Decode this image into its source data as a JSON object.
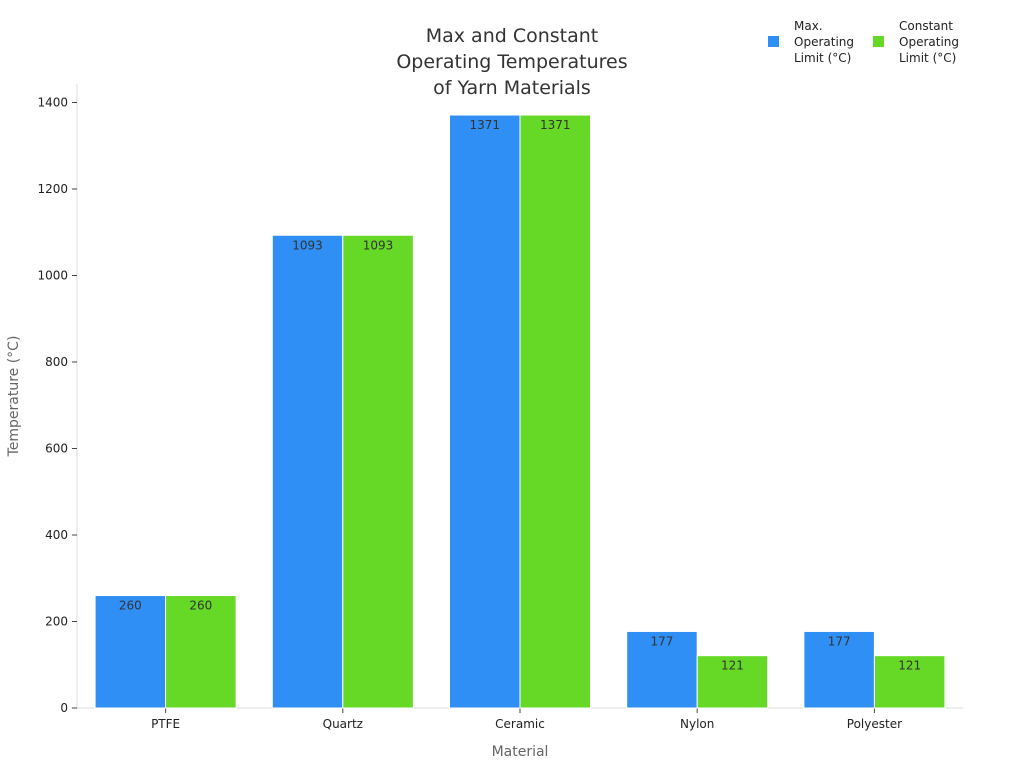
{
  "chart_data": {
    "type": "bar",
    "title_lines": [
      "Max and Constant",
      "Operating Temperatures",
      "of Yarn Materials"
    ],
    "xlabel": "Material",
    "ylabel": "Temperature (°C)",
    "categories": [
      "PTFE",
      "Quartz",
      "Ceramic",
      "Nylon",
      "Polyester"
    ],
    "series": [
      {
        "name_lines": [
          "Max.",
          "Operating",
          "Limit (°C)"
        ],
        "color": "#2f8ff5",
        "values": [
          260,
          1093,
          1371,
          177,
          177
        ]
      },
      {
        "name_lines": [
          "Constant",
          "Operating",
          "Limit (°C)"
        ],
        "color": "#66d926",
        "values": [
          260,
          1093,
          1371,
          121,
          121
        ]
      }
    ],
    "ylim": [
      0,
      1400
    ],
    "yticks": [
      0,
      200,
      400,
      600,
      800,
      1000,
      1200,
      1400
    ],
    "grid": false,
    "legend_position": "top-right",
    "data_labels": true
  }
}
